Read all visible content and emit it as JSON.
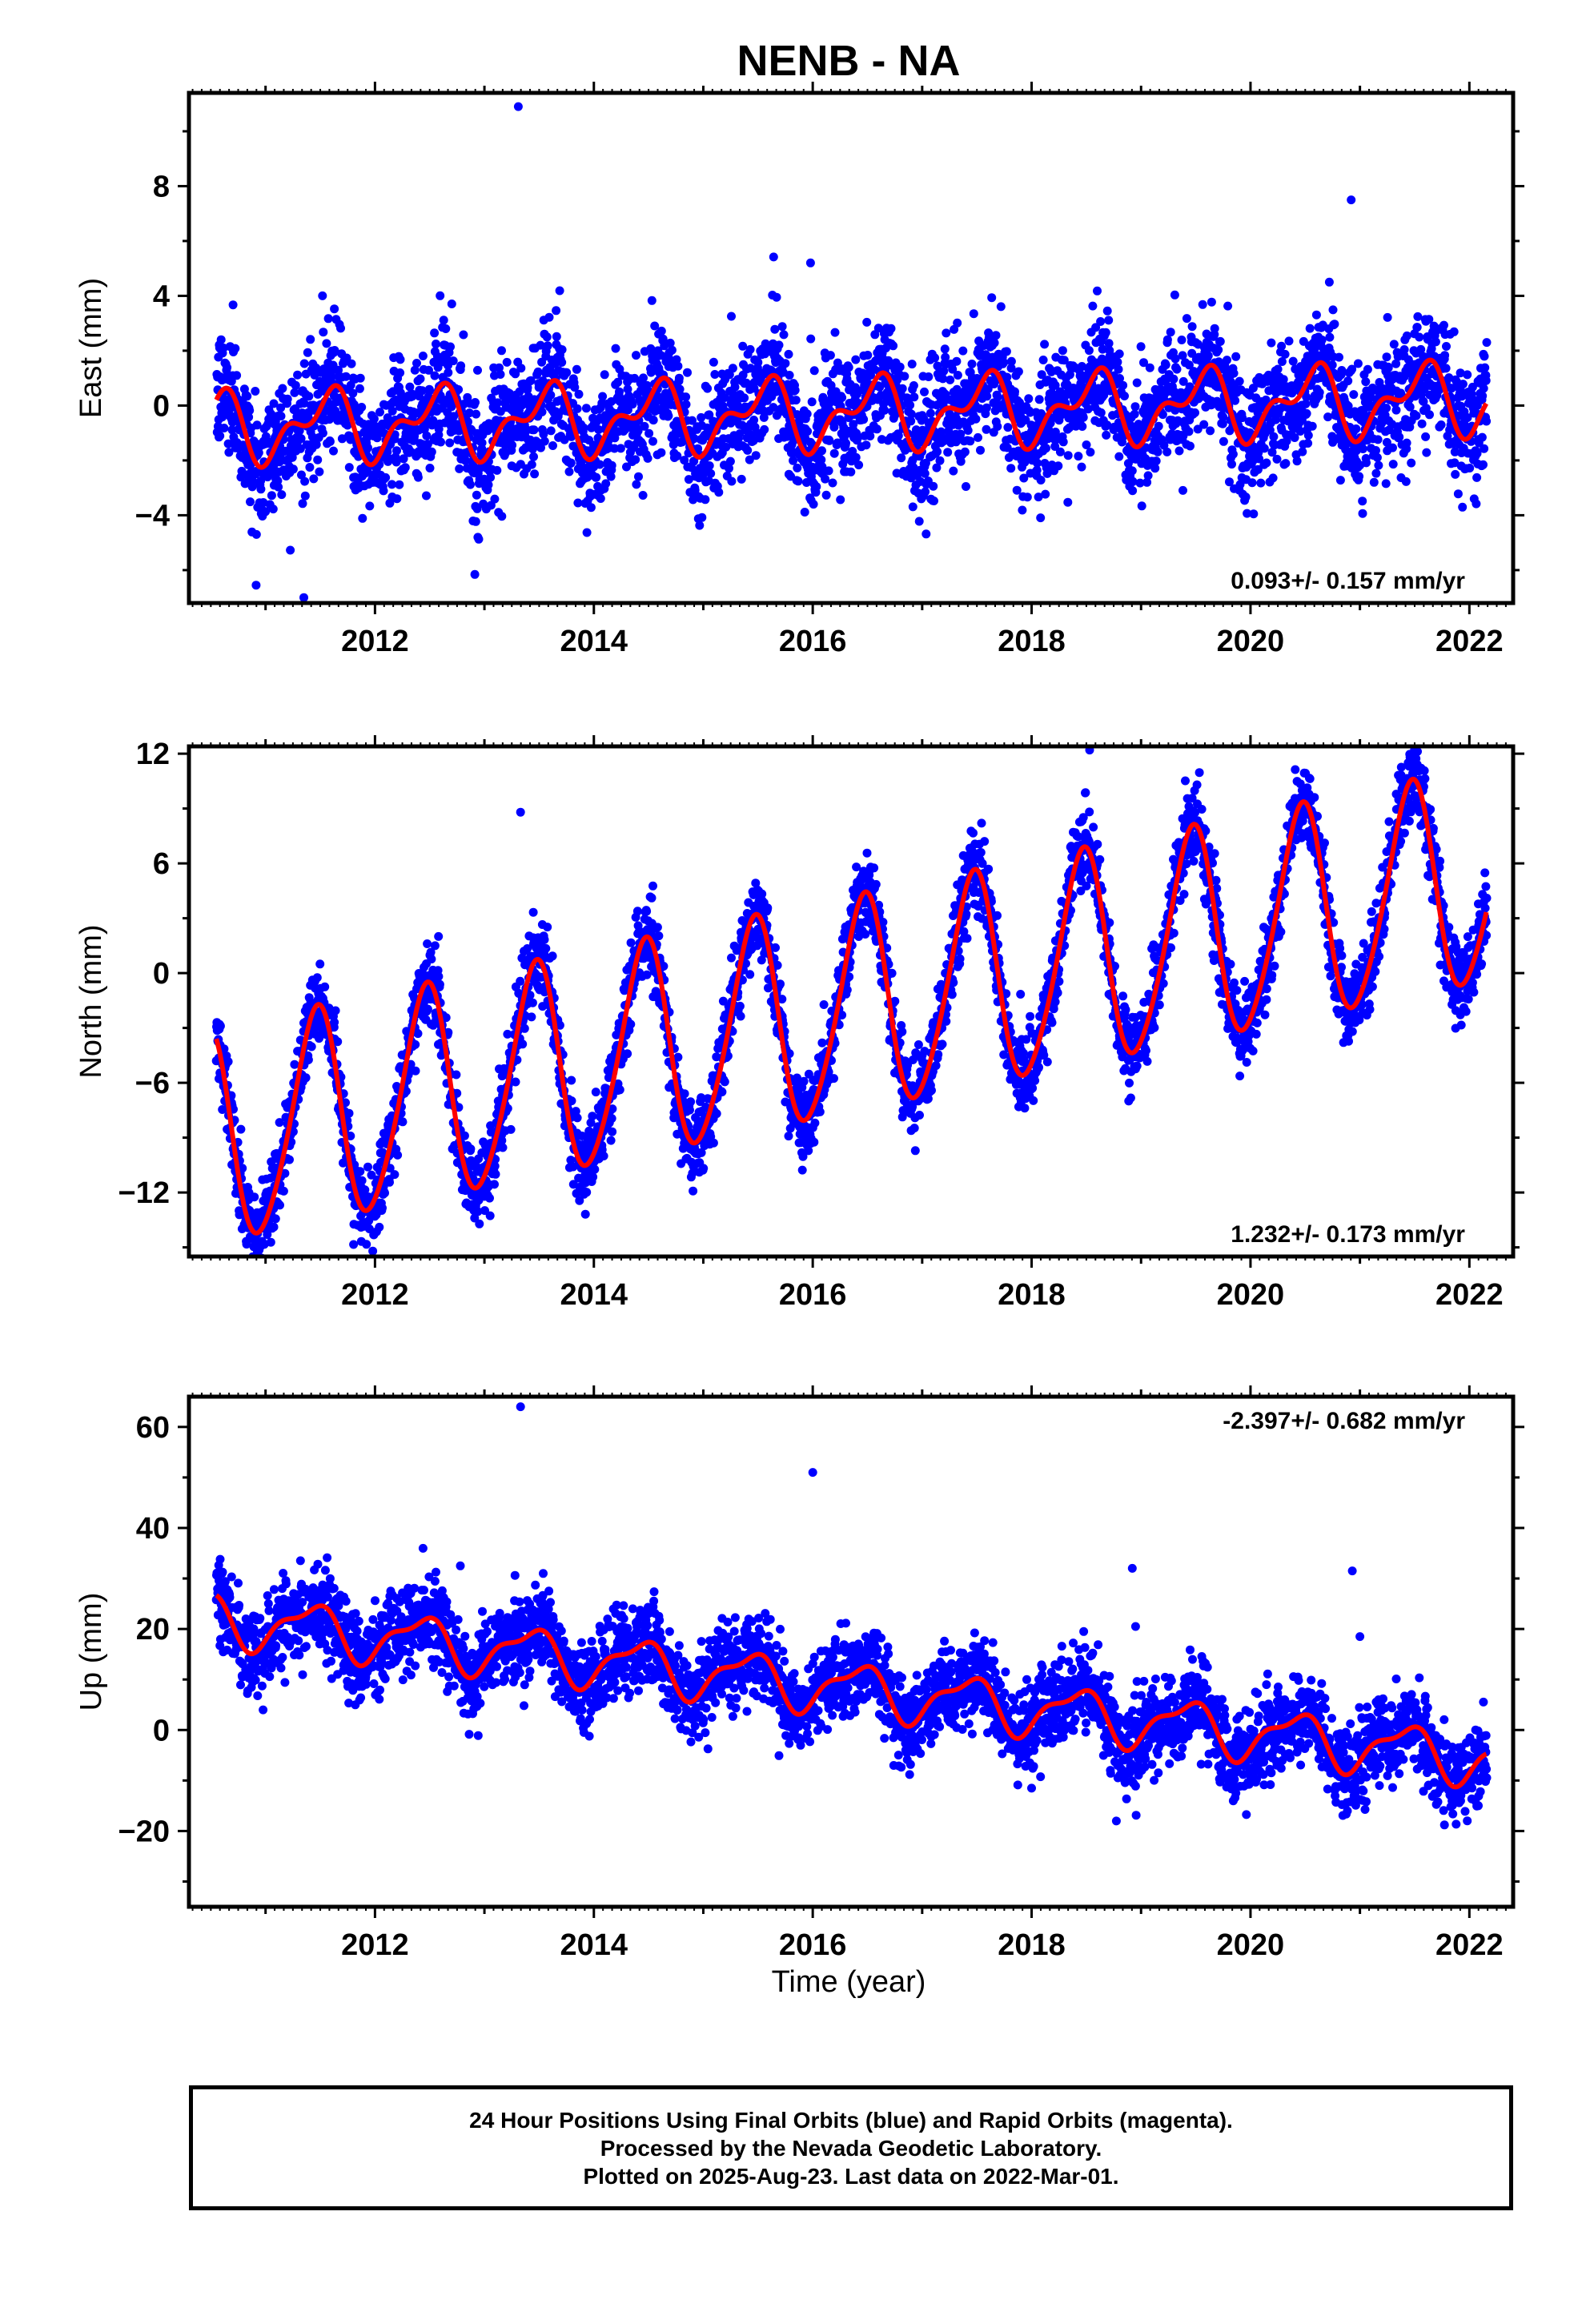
{
  "title": "NENB - NA",
  "colors": {
    "final_orbits": "#0000ff",
    "rapid_orbits": "#ff00ff",
    "model": "#ff0000"
  },
  "xlabel": "Time (year)",
  "footer": {
    "line1": "24 Hour Positions Using Final Orbits (blue) and Rapid Orbits (magenta).",
    "line2": "Processed by the Nevada Geodetic Laboratory.",
    "line3": "Plotted on 2025-Aug-23. Last data on 2022-Mar-01."
  },
  "chart_data": [
    {
      "type": "scatter",
      "ylabel": "East (mm)",
      "xlim": [
        2010.3,
        2022.4
      ],
      "ylim": [
        -7.2,
        11.4
      ],
      "xticks": [
        2012,
        2014,
        2016,
        2018,
        2020,
        2022
      ],
      "yticks": [
        -4,
        0,
        4,
        8
      ],
      "x_range": [
        2010.55,
        2022.16
      ],
      "rate_annotation": "0.093+/- 0.157 mm/yr",
      "model": {
        "rate": 0.093,
        "offset": -0.3,
        "annual_sin": -0.3,
        "annual_cos": -1.0,
        "semi_sin": 0.5,
        "semi_cos": -0.4
      },
      "scatter_sigma": 1.1,
      "outliers": [
        [
          2013.31,
          10.9
        ],
        [
          2020.92,
          7.5
        ],
        [
          2011.35,
          -7.0
        ],
        [
          2015.98,
          5.2
        ],
        [
          2020.72,
          4.5
        ],
        [
          2011.52,
          4.0
        ]
      ],
      "series": [
        {
          "name": "Final Orbits",
          "color": "#0000ff"
        },
        {
          "name": "Model",
          "color": "#ff0000"
        }
      ]
    },
    {
      "type": "scatter",
      "ylabel": "North (mm)",
      "xlim": [
        2010.3,
        2022.4
      ],
      "ylim": [
        -15.5,
        12.4
      ],
      "xticks": [
        2012,
        2014,
        2016,
        2018,
        2020,
        2022
      ],
      "yticks": [
        -12,
        -6,
        0,
        6,
        12
      ],
      "x_range": [
        2010.55,
        2022.16
      ],
      "rate_annotation": "1.232+/- 0.173 mm/yr",
      "model": {
        "rate": 1.232,
        "offset": -2.4,
        "annual_sin": 1.5,
        "annual_cos": -5.6,
        "semi_sin": 0.3,
        "semi_cos": 0.6
      },
      "scatter_sigma": 1.1,
      "outliers": [
        [
          2013.33,
          8.8
        ],
        [
          2011.98,
          -15.2
        ],
        [
          2012.58,
          2.0
        ],
        [
          2018.53,
          12.2
        ],
        [
          2021.52,
          12.1
        ]
      ],
      "series": [
        {
          "name": "Final Orbits",
          "color": "#0000ff"
        },
        {
          "name": "Model",
          "color": "#ff0000"
        }
      ]
    },
    {
      "type": "scatter",
      "ylabel": "Up (mm)",
      "xlim": [
        2010.3,
        2022.4
      ],
      "ylim": [
        -35,
        66
      ],
      "xticks": [
        2012,
        2014,
        2016,
        2018,
        2020,
        2022
      ],
      "yticks": [
        -20,
        0,
        20,
        40,
        60
      ],
      "x_range": [
        2010.55,
        2022.16
      ],
      "rate_annotation": "-2.397+/- 0.682 mm/yr",
      "model": {
        "rate": -2.397,
        "offset": 9.0,
        "annual_sin": 2.5,
        "annual_cos": -4.0,
        "semi_sin": 1.6,
        "semi_cos": 0.8
      },
      "scatter_sigma": 4.2,
      "outliers": [
        [
          2013.33,
          64.0
        ],
        [
          2016.0,
          51.0
        ],
        [
          2018.92,
          32.0
        ],
        [
          2020.93,
          31.5
        ],
        [
          2018.95,
          20.5
        ],
        [
          2021.0,
          18.5
        ],
        [
          2012.78,
          32.5
        ]
      ],
      "series": [
        {
          "name": "Final Orbits",
          "color": "#0000ff"
        },
        {
          "name": "Model",
          "color": "#ff0000"
        }
      ]
    }
  ]
}
